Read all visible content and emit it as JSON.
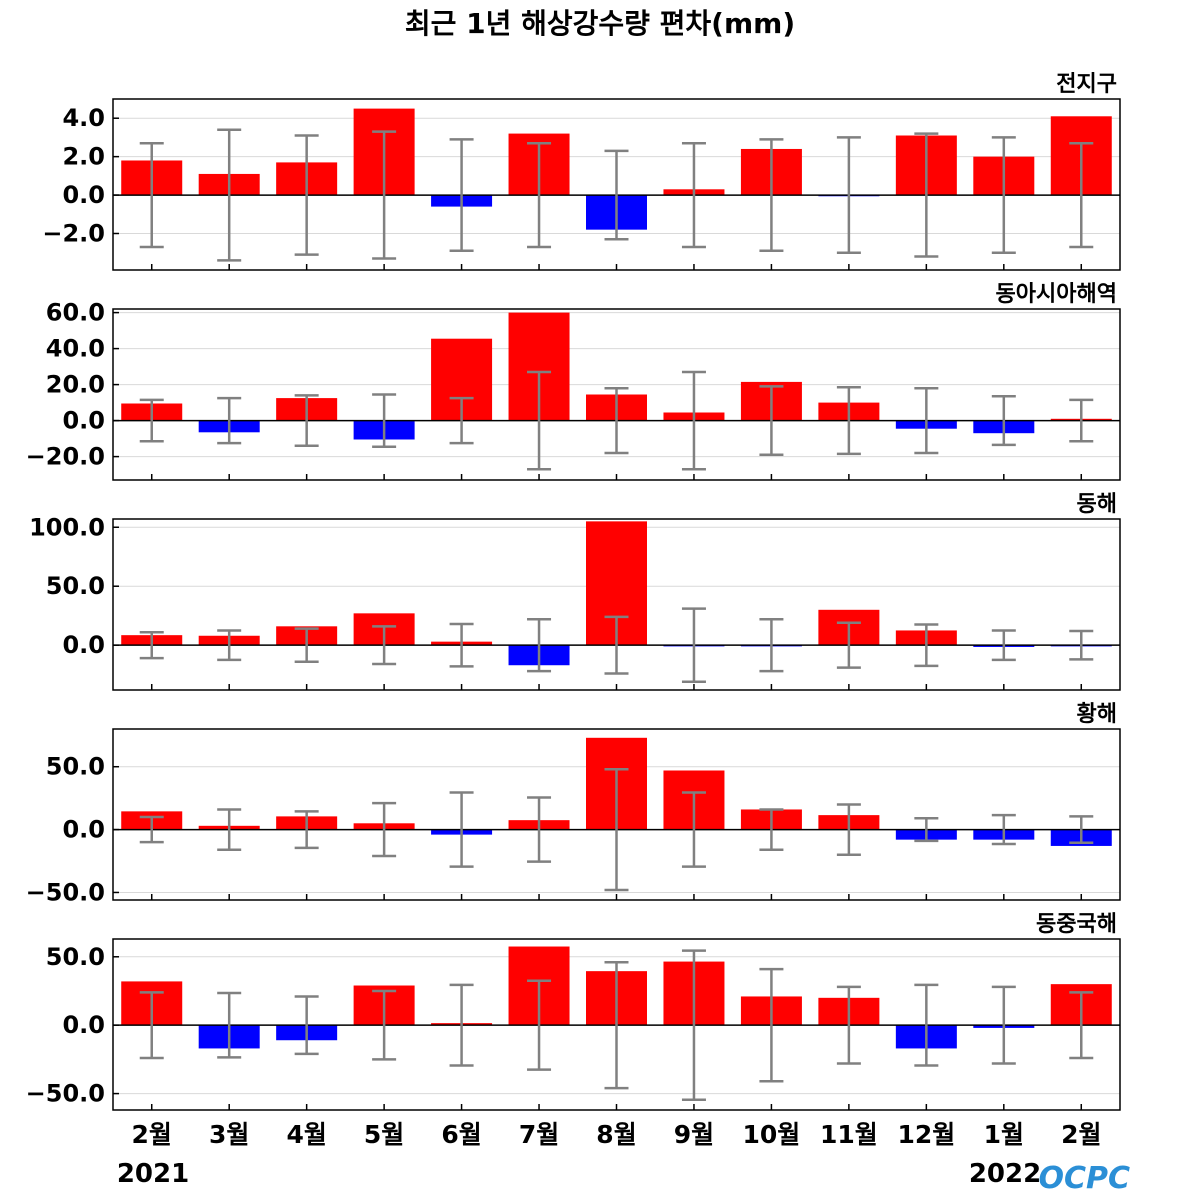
{
  "chart_data": {
    "title": "최근 1년 해상강수량 편차(mm)",
    "type": "bar",
    "categories": [
      "2월",
      "3월",
      "4월",
      "5월",
      "6월",
      "7월",
      "8월",
      "9월",
      "10월",
      "11월",
      "12월",
      "1월",
      "2월"
    ],
    "years": {
      "start": "2021",
      "end": "2022"
    },
    "colors": {
      "positive": "#ff0000",
      "negative": "#0000ff",
      "errorbar": "#808080"
    },
    "panels": [
      {
        "name": "전지구",
        "ylim": [
          -3.9,
          5.0
        ],
        "yticks": [
          "4.0",
          "2.0",
          "0.0",
          "−2.0"
        ],
        "ytick_values": [
          4,
          2,
          0,
          -2
        ],
        "values": [
          1.8,
          1.1,
          1.7,
          4.5,
          -0.6,
          3.2,
          -1.8,
          0.3,
          2.4,
          -0.05,
          3.1,
          2.0,
          4.1
        ],
        "errors": [
          2.7,
          3.4,
          3.1,
          3.3,
          2.9,
          2.7,
          2.3,
          2.7,
          2.9,
          3.0,
          3.2,
          3.0,
          2.7
        ]
      },
      {
        "name": "동아시아해역",
        "ylim": [
          -33,
          62
        ],
        "yticks": [
          "60.0",
          "40.0",
          "20.0",
          "0.0",
          "−20.0"
        ],
        "ytick_values": [
          60,
          40,
          20,
          0,
          -20
        ],
        "values": [
          9.5,
          -6.5,
          12.5,
          -10.5,
          45.5,
          60,
          14.5,
          4.5,
          21.5,
          10,
          -4.5,
          -7,
          1
        ],
        "errors": [
          11.5,
          12.5,
          14,
          14.5,
          12.5,
          27,
          18,
          27,
          19,
          18.5,
          18,
          13.5,
          11.5
        ]
      },
      {
        "name": "동해",
        "ylim": [
          -38,
          107
        ],
        "yticks": [
          "100.0",
          "50.0",
          "0.0"
        ],
        "ytick_values": [
          100,
          50,
          0
        ],
        "values": [
          8.5,
          8,
          16,
          27,
          3,
          -17,
          105,
          -0.8,
          -0.8,
          30,
          12.5,
          -1.5,
          -0.8
        ],
        "errors": [
          11,
          12.5,
          14,
          16,
          18,
          22,
          24,
          31,
          22,
          19,
          17.5,
          12.5,
          12
        ]
      },
      {
        "name": "황해",
        "ylim": [
          -56,
          80
        ],
        "yticks": [
          "50.0",
          "0.0",
          "−50.0"
        ],
        "ytick_values": [
          50,
          0,
          -50
        ],
        "values": [
          14.5,
          3,
          10.5,
          5,
          -4,
          7.5,
          73,
          47,
          16,
          11.5,
          -8,
          -8,
          -13
        ],
        "errors": [
          10,
          16,
          14.5,
          21,
          29.5,
          25.5,
          48,
          29.5,
          16,
          20,
          9,
          11.5,
          10.5
        ]
      },
      {
        "name": "동중국해",
        "ylim": [
          -62,
          63
        ],
        "yticks": [
          "50.0",
          "0.0",
          "−50.0"
        ],
        "ytick_values": [
          50,
          0,
          -50
        ],
        "values": [
          32,
          -17,
          -11,
          29,
          1.5,
          57.5,
          39.5,
          46.5,
          21,
          20,
          -17,
          -2,
          30
        ],
        "errors": [
          24,
          23.5,
          21,
          25,
          29.5,
          32.5,
          46,
          54.5,
          41,
          28,
          29.5,
          28,
          24
        ]
      }
    ]
  },
  "logo_text": "OCPC"
}
